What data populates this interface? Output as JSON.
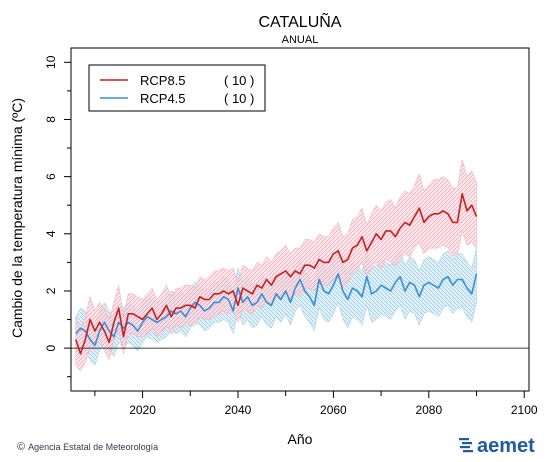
{
  "chart_data": {
    "type": "line",
    "title": "CATALUÑA",
    "subtitle": "ANUAL",
    "xlabel": "Año",
    "ylabel": "Cambio de la temperatura mínima (ºC)",
    "xlim": [
      2005,
      2101
    ],
    "ylim": [
      -1.5,
      10.5
    ],
    "xticks": [
      2020,
      2040,
      2060,
      2080,
      2100
    ],
    "yticks": [
      0,
      2,
      4,
      6,
      8,
      10
    ],
    "grid": false,
    "legend_position": "top-left",
    "zero_line": 0,
    "x_start": 2006,
    "series": [
      {
        "name": "RCP8.5",
        "count_label": "( 10 )",
        "color": "#cc1f1f",
        "band_color": "#f4a8b4",
        "values": [
          0.3,
          -0.2,
          0.3,
          1.0,
          0.6,
          0.9,
          0.6,
          0.2,
          0.9,
          1.4,
          0.4,
          1.2,
          1.2,
          1.1,
          1.0,
          1.2,
          1.4,
          1.0,
          1.2,
          1.5,
          1.1,
          1.4,
          1.4,
          1.5,
          1.5,
          1.4,
          1.8,
          1.7,
          1.7,
          1.9,
          1.9,
          2.0,
          1.9,
          2.0,
          1.5,
          2.1,
          2.0,
          1.9,
          2.2,
          2.1,
          2.4,
          2.2,
          2.5,
          2.6,
          2.7,
          2.5,
          2.7,
          2.6,
          2.9,
          2.9,
          2.8,
          3.1,
          3.0,
          3.0,
          3.3,
          3.4,
          3.0,
          3.1,
          3.5,
          3.6,
          3.9,
          3.4,
          3.7,
          4.0,
          3.8,
          4.1,
          4.1,
          3.9,
          4.2,
          4.4,
          4.3,
          4.6,
          4.9,
          4.4,
          4.6,
          4.7,
          4.7,
          4.8,
          4.7,
          4.4,
          4.4,
          5.4,
          4.8,
          5.0,
          4.6
        ],
        "lower": [
          -0.6,
          -0.8,
          -0.5,
          0.0,
          0.0,
          0.3,
          -0.1,
          -0.4,
          0.3,
          0.6,
          -0.2,
          0.5,
          0.5,
          0.4,
          0.4,
          0.5,
          0.7,
          0.4,
          0.5,
          0.8,
          0.5,
          0.8,
          0.7,
          0.9,
          0.8,
          0.8,
          1.1,
          1.0,
          1.0,
          1.1,
          1.2,
          1.3,
          1.2,
          1.3,
          0.9,
          1.4,
          1.3,
          1.2,
          1.5,
          1.4,
          1.7,
          1.5,
          1.8,
          1.8,
          1.9,
          1.7,
          1.9,
          1.8,
          2.1,
          2.1,
          2.0,
          2.3,
          2.2,
          2.2,
          2.4,
          2.5,
          2.1,
          2.3,
          2.6,
          2.7,
          3.0,
          2.5,
          2.8,
          3.0,
          2.8,
          3.1,
          3.0,
          2.9,
          3.1,
          3.3,
          3.2,
          3.5,
          3.7,
          3.3,
          3.5,
          3.5,
          3.5,
          3.6,
          3.5,
          3.2,
          3.3,
          4.1,
          3.6,
          3.7,
          3.5
        ],
        "upper": [
          1.1,
          0.6,
          1.1,
          1.8,
          1.3,
          1.6,
          1.4,
          1.0,
          1.6,
          2.2,
          1.1,
          1.9,
          1.9,
          1.8,
          1.7,
          1.9,
          2.1,
          1.7,
          1.9,
          2.2,
          1.8,
          2.1,
          2.1,
          2.2,
          2.2,
          2.1,
          2.5,
          2.4,
          2.5,
          2.7,
          2.7,
          2.8,
          2.7,
          2.8,
          2.3,
          2.9,
          2.8,
          2.7,
          3.0,
          2.9,
          3.2,
          3.0,
          3.3,
          3.4,
          3.6,
          3.3,
          3.5,
          3.5,
          3.8,
          3.8,
          3.7,
          4.0,
          3.9,
          3.9,
          4.2,
          4.4,
          3.9,
          4.0,
          4.5,
          4.6,
          4.9,
          4.3,
          4.7,
          5.0,
          4.8,
          5.1,
          5.2,
          4.9,
          5.3,
          5.5,
          5.4,
          5.7,
          6.1,
          5.5,
          5.7,
          5.9,
          5.9,
          6.0,
          5.9,
          5.6,
          5.6,
          6.6,
          6.0,
          6.2,
          5.8
        ]
      },
      {
        "name": "RCP4.5",
        "count_label": "( 10 )",
        "color": "#3b8fd8",
        "band_color": "#9fcde3",
        "values": [
          0.5,
          0.7,
          0.6,
          0.3,
          0.1,
          0.6,
          0.9,
          0.6,
          0.4,
          0.9,
          0.7,
          0.9,
          0.8,
          0.6,
          0.9,
          1.1,
          1.0,
          0.9,
          1.0,
          1.1,
          1.3,
          1.2,
          1.3,
          1.1,
          1.4,
          1.6,
          1.5,
          1.3,
          1.4,
          1.6,
          1.6,
          1.8,
          1.7,
          1.3,
          2.1,
          1.6,
          1.8,
          1.5,
          1.6,
          1.9,
          1.6,
          1.5,
          1.9,
          1.7,
          2.0,
          1.6,
          2.1,
          2.4,
          2.0,
          1.8,
          1.5,
          2.4,
          2.0,
          1.9,
          2.2,
          2.6,
          2.0,
          1.7,
          2.1,
          2.0,
          1.8,
          2.5,
          1.9,
          2.0,
          2.2,
          2.1,
          2.0,
          2.3,
          2.5,
          2.0,
          2.3,
          2.2,
          1.8,
          2.2,
          2.3,
          2.2,
          2.1,
          2.4,
          2.5,
          2.2,
          2.4,
          2.4,
          2.1,
          1.9,
          2.6
        ],
        "lower": [
          -0.2,
          0.0,
          -0.1,
          -0.4,
          -0.6,
          -0.1,
          0.2,
          -0.1,
          -0.3,
          0.2,
          0.0,
          0.2,
          0.1,
          -0.1,
          0.2,
          0.4,
          0.3,
          0.2,
          0.3,
          0.4,
          0.6,
          0.5,
          0.6,
          0.4,
          0.7,
          0.9,
          0.8,
          0.6,
          0.7,
          0.9,
          0.9,
          1.0,
          0.9,
          0.5,
          1.3,
          0.8,
          1.0,
          0.7,
          0.8,
          1.1,
          0.8,
          0.7,
          1.1,
          0.9,
          1.2,
          0.8,
          1.3,
          1.5,
          1.1,
          0.9,
          0.6,
          1.4,
          1.0,
          0.9,
          1.2,
          1.6,
          1.0,
          0.7,
          1.1,
          1.0,
          0.8,
          1.5,
          0.9,
          1.0,
          1.2,
          1.1,
          1.0,
          1.3,
          1.5,
          1.0,
          1.3,
          1.2,
          0.8,
          1.2,
          1.3,
          1.2,
          1.1,
          1.4,
          1.5,
          1.2,
          1.4,
          1.4,
          1.1,
          0.9,
          1.6
        ],
        "upper": [
          1.1,
          1.4,
          1.3,
          1.0,
          0.8,
          1.3,
          1.6,
          1.3,
          1.1,
          1.6,
          1.4,
          1.6,
          1.5,
          1.3,
          1.6,
          1.8,
          1.7,
          1.6,
          1.7,
          1.8,
          2.0,
          1.9,
          2.0,
          1.8,
          2.1,
          2.3,
          2.2,
          2.0,
          2.1,
          2.3,
          2.3,
          2.5,
          2.4,
          2.0,
          2.8,
          2.3,
          2.5,
          2.2,
          2.3,
          2.6,
          2.3,
          2.2,
          2.6,
          2.4,
          2.7,
          2.3,
          2.8,
          3.1,
          2.7,
          2.5,
          2.2,
          3.3,
          2.9,
          2.8,
          3.1,
          3.5,
          2.9,
          2.6,
          3.0,
          2.9,
          2.7,
          3.4,
          2.8,
          2.9,
          3.1,
          3.0,
          2.9,
          3.2,
          3.4,
          2.9,
          3.2,
          3.1,
          2.7,
          3.1,
          3.2,
          3.1,
          3.0,
          3.3,
          3.4,
          3.1,
          3.3,
          3.3,
          3.0,
          2.8,
          3.5
        ]
      }
    ]
  },
  "footer": {
    "copyright_symbol": "©",
    "agency": "Agencia Estatal de Meteorología",
    "brand": "aemet",
    "brand_color": "#1e5aa8"
  }
}
